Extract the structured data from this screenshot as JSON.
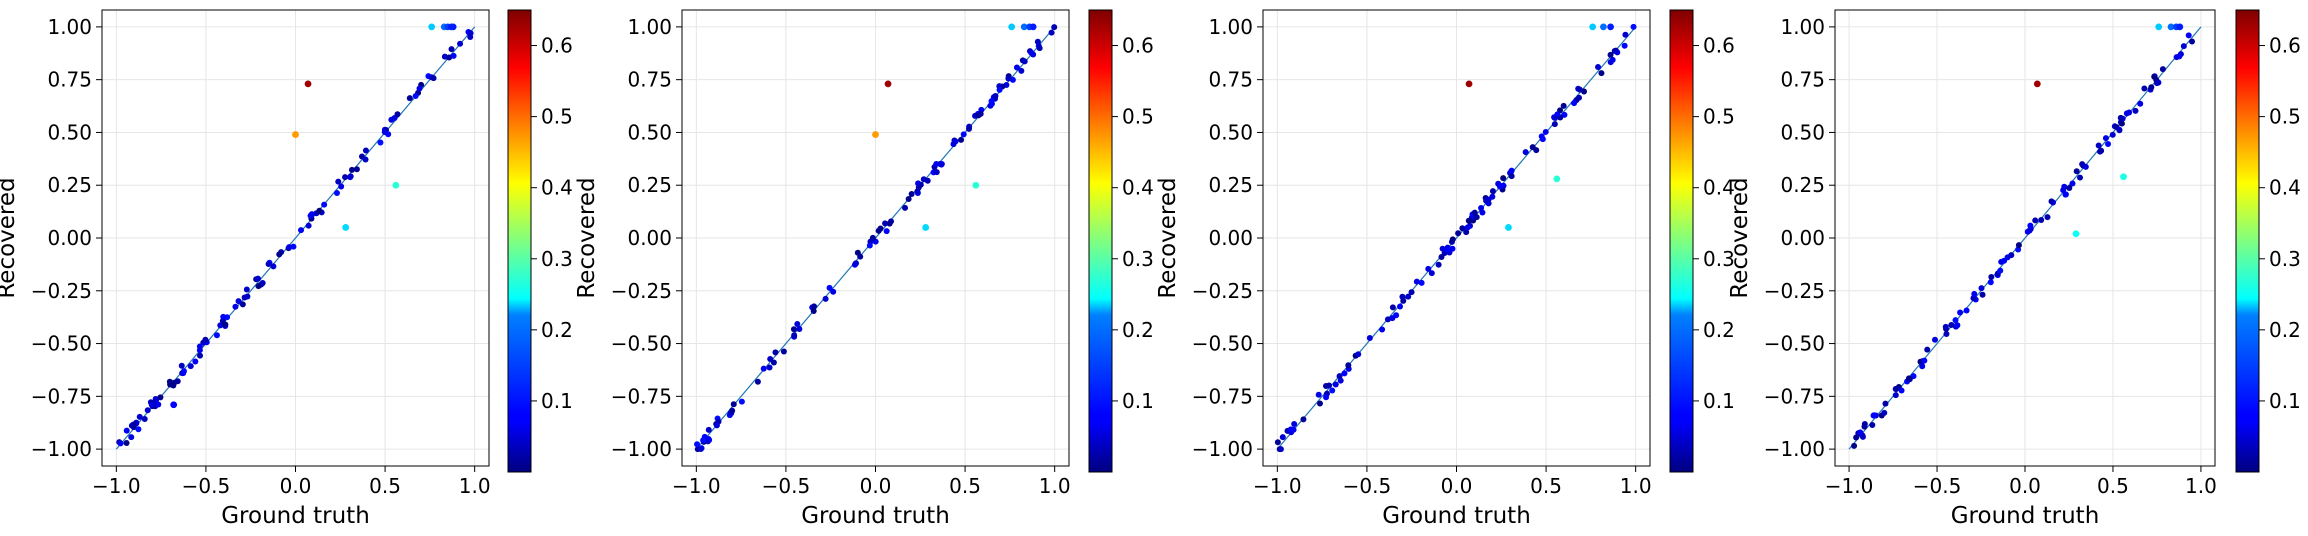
{
  "chart_data": [
    {
      "type": "scatter",
      "xlabel": "Ground truth",
      "ylabel": "Recovered",
      "xlim": [
        -1.08,
        1.08
      ],
      "ylim": [
        -1.08,
        1.08
      ],
      "xticks": [
        "−1.0",
        "−0.5",
        "0.0",
        "0.5",
        "1.0"
      ],
      "yticks": [
        "−1.00",
        "−0.75",
        "−0.50",
        "−0.25",
        "0.00",
        "0.25",
        "0.50",
        "0.75",
        "1.00"
      ],
      "colorbar": {
        "cmap": "jet",
        "min": 0.0,
        "max": 0.65,
        "ticks": [
          "0.1",
          "0.2",
          "0.3",
          "0.4",
          "0.5",
          "0.6"
        ]
      },
      "grid": true,
      "diagonal": true,
      "outliers": [
        {
          "x": 0.07,
          "y": 0.73,
          "c": 0.63
        },
        {
          "x": 0.0,
          "y": 0.49,
          "c": 0.47
        },
        {
          "x": 0.56,
          "y": 0.25,
          "c": 0.27
        },
        {
          "x": 0.28,
          "y": 0.05,
          "c": 0.22
        },
        {
          "x": 0.76,
          "y": 1.0,
          "c": 0.21
        },
        {
          "x": 0.83,
          "y": 1.0,
          "c": 0.15
        },
        {
          "x": 0.85,
          "y": 1.0,
          "c": 0.12
        },
        {
          "x": 0.87,
          "y": 1.0,
          "c": 0.1
        },
        {
          "x": 0.88,
          "y": 1.0,
          "c": 0.1
        },
        {
          "x": -0.68,
          "y": -0.79,
          "c": 0.08
        }
      ]
    },
    {
      "type": "scatter",
      "xlabel": "Ground truth",
      "ylabel": "Recovered",
      "xlim": [
        -1.08,
        1.08
      ],
      "ylim": [
        -1.08,
        1.08
      ],
      "xticks": [
        "−1.0",
        "−0.5",
        "0.0",
        "0.5",
        "1.0"
      ],
      "yticks": [
        "−1.00",
        "−0.75",
        "−0.50",
        "−0.25",
        "0.00",
        "0.25",
        "0.50",
        "0.75",
        "1.00"
      ],
      "colorbar": {
        "cmap": "jet",
        "min": 0.0,
        "max": 0.65,
        "ticks": [
          "0.1",
          "0.2",
          "0.3",
          "0.4",
          "0.5",
          "0.6"
        ]
      },
      "grid": true,
      "diagonal": true,
      "outliers": [
        {
          "x": 0.07,
          "y": 0.73,
          "c": 0.63
        },
        {
          "x": 0.0,
          "y": 0.49,
          "c": 0.47
        },
        {
          "x": 0.56,
          "y": 0.25,
          "c": 0.27
        },
        {
          "x": 0.28,
          "y": 0.05,
          "c": 0.22
        },
        {
          "x": 0.76,
          "y": 1.0,
          "c": 0.21
        },
        {
          "x": 0.83,
          "y": 1.0,
          "c": 0.15
        },
        {
          "x": 0.86,
          "y": 1.0,
          "c": 0.12
        },
        {
          "x": 0.88,
          "y": 1.0,
          "c": 0.1
        }
      ]
    },
    {
      "type": "scatter",
      "xlabel": "Ground truth",
      "ylabel": "Recovered",
      "xlim": [
        -1.08,
        1.08
      ],
      "ylim": [
        -1.08,
        1.08
      ],
      "xticks": [
        "−1.0",
        "−0.5",
        "0.0",
        "0.5",
        "1.0"
      ],
      "yticks": [
        "−1.00",
        "−0.75",
        "−0.50",
        "−0.25",
        "0.00",
        "0.25",
        "0.50",
        "0.75",
        "1.00"
      ],
      "colorbar": {
        "cmap": "jet",
        "min": 0.0,
        "max": 0.65,
        "ticks": [
          "0.1",
          "0.2",
          "0.3",
          "0.4",
          "0.5",
          "0.6"
        ]
      },
      "grid": true,
      "diagonal": true,
      "outliers": [
        {
          "x": 0.07,
          "y": 0.73,
          "c": 0.63
        },
        {
          "x": 0.56,
          "y": 0.28,
          "c": 0.27
        },
        {
          "x": 0.29,
          "y": 0.05,
          "c": 0.22
        },
        {
          "x": 0.76,
          "y": 1.0,
          "c": 0.21
        },
        {
          "x": 0.82,
          "y": 1.0,
          "c": 0.15
        },
        {
          "x": 0.86,
          "y": 1.0,
          "c": 0.1
        }
      ]
    },
    {
      "type": "scatter",
      "xlabel": "Ground truth",
      "ylabel": "Recovered",
      "xlim": [
        -1.08,
        1.08
      ],
      "ylim": [
        -1.08,
        1.08
      ],
      "xticks": [
        "−1.0",
        "−0.5",
        "0.0",
        "0.5",
        "1.0"
      ],
      "yticks": [
        "−1.00",
        "−0.75",
        "−0.50",
        "−0.25",
        "0.00",
        "0.25",
        "0.50",
        "0.75",
        "1.00"
      ],
      "colorbar": {
        "cmap": "jet",
        "min": 0.0,
        "max": 0.65,
        "ticks": [
          "0.1",
          "0.2",
          "0.3",
          "0.4",
          "0.5",
          "0.6"
        ]
      },
      "grid": true,
      "diagonal": true,
      "outliers": [
        {
          "x": 0.07,
          "y": 0.73,
          "c": 0.63
        },
        {
          "x": 0.56,
          "y": 0.29,
          "c": 0.26
        },
        {
          "x": 0.29,
          "y": 0.02,
          "c": 0.25
        },
        {
          "x": 0.76,
          "y": 1.0,
          "c": 0.21
        },
        {
          "x": 0.83,
          "y": 1.0,
          "c": 0.15
        },
        {
          "x": 0.86,
          "y": 1.0,
          "c": 0.12
        },
        {
          "x": 0.88,
          "y": 1.0,
          "c": 0.1
        }
      ]
    }
  ]
}
